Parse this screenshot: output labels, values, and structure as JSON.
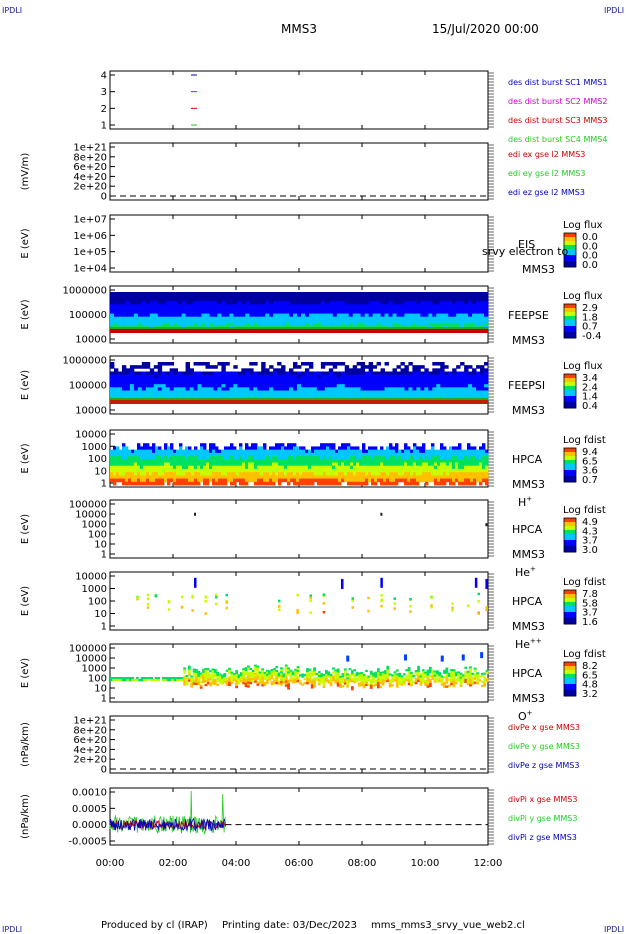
{
  "header": {
    "corner_tl": "IPDLI",
    "corner_tr": "IPDLI",
    "corner_bl": "IPDLI",
    "corner_br": "IPDLI",
    "title": "MMS3",
    "date": "15/Jul/2020 00:00"
  },
  "footer": {
    "produced": "Produced by cl (IRAP)",
    "printing": "Printing date: 03/Dec/2023",
    "script": "mms_mms3_srvy_vue_web2.cl"
  },
  "colors": {
    "red": "#cc0000",
    "green": "#22cc22",
    "blue": "#0000bb",
    "magenta": "#cc00cc"
  },
  "chart_data": {
    "type": "spectrogram-stack",
    "x_ticks": [
      "00:00",
      "02:00",
      "04:00",
      "06:00",
      "08:00",
      "10:00",
      "12:00"
    ],
    "panels": [
      {
        "id": "burst",
        "type": "line",
        "yticks": [
          "4",
          "3",
          "2",
          "1"
        ],
        "ylabel": "",
        "legend": [
          {
            "text": "des dist burst SC1 MMS1",
            "color": "#0000bb"
          },
          {
            "text": "des dist burst SC2 MMS2",
            "color": "#cc00cc"
          },
          {
            "text": "des dist burst SC3 MMS3",
            "color": "#cc0000"
          },
          {
            "text": "des dist burst SC4 MMS4",
            "color": "#22cc22"
          }
        ],
        "marks": [
          {
            "sc": 4,
            "time": "02:40"
          },
          {
            "sc": 3,
            "time": "02:40"
          },
          {
            "sc": 2,
            "time": "02:40"
          },
          {
            "sc": 1,
            "time": "02:40"
          }
        ]
      },
      {
        "id": "edi",
        "type": "line",
        "ylabel": "(mV/m)",
        "yticks": [
          "1e+21",
          "8e+20",
          "6e+20",
          "4e+20",
          "2e+20",
          "0"
        ],
        "legend": [
          {
            "text": "edi ex gse l2 MMS3",
            "color": "#cc0000"
          },
          {
            "text": "edi ey gse l2 MMS3",
            "color": "#22cc22"
          },
          {
            "text": "edi ez gse l2 MMS3",
            "color": "#0000bb"
          }
        ]
      },
      {
        "id": "eis",
        "type": "heatmap",
        "ylabel": "E (eV)",
        "yticks": [
          "1e+07",
          "1e+06",
          "1e+05",
          "1e+04"
        ],
        "inst": [
          "EIS",
          "MMS3"
        ],
        "overlap_label": "srvy electron to",
        "cbar_title": "Log flux",
        "cbar_ticks": [
          "0.0",
          "0.0",
          "0.0",
          "0.0"
        ]
      },
      {
        "id": "feepse",
        "type": "heatmap",
        "ylabel": "E (eV)",
        "yticks": [
          "1000000",
          "100000",
          "10000"
        ],
        "inst": [
          "FEEPSE",
          "MMS3"
        ],
        "cbar_title": "Log flux",
        "cbar_ticks": [
          "2.9",
          "1.8",
          "0.7",
          "-0.4"
        ]
      },
      {
        "id": "feepsi",
        "type": "heatmap",
        "ylabel": "E (eV)",
        "yticks": [
          "1000000",
          "100000",
          "10000"
        ],
        "inst": [
          "FEEPSI",
          "MMS3"
        ],
        "cbar_title": "Log flux",
        "cbar_ticks": [
          "3.4",
          "2.4",
          "1.4",
          "0.4"
        ]
      },
      {
        "id": "hpca_h",
        "type": "heatmap",
        "ylabel": "E (eV)",
        "yticks": [
          "10000",
          "1000",
          "100",
          "10",
          "1"
        ],
        "inst": [
          "HPCA",
          "MMS3"
        ],
        "species": "H",
        "species_sup": "+",
        "cbar_title": "Log fdist",
        "cbar_ticks": [
          "9.4",
          "6.5",
          "3.6",
          "0.7"
        ]
      },
      {
        "id": "hpca_he",
        "type": "heatmap",
        "ylabel": "E (eV)",
        "yticks": [
          "100000",
          "10000",
          "1000",
          "100",
          "10",
          "1"
        ],
        "inst": [
          "HPCA",
          "MMS3"
        ],
        "species": "He",
        "species_sup": "+",
        "cbar_title": "Log fdist",
        "cbar_ticks": [
          "4.9",
          "4.3",
          "3.7",
          "3.0"
        ]
      },
      {
        "id": "hpca_he2",
        "type": "heatmap",
        "ylabel": "E (eV)",
        "yticks": [
          "10000",
          "1000",
          "100",
          "10",
          "1"
        ],
        "inst": [
          "HPCA",
          "MMS3"
        ],
        "species": "He",
        "species_sup": "++",
        "cbar_title": "Log fdist",
        "cbar_ticks": [
          "7.8",
          "5.8",
          "3.7",
          "1.6"
        ]
      },
      {
        "id": "hpca_o",
        "type": "heatmap",
        "ylabel": "E (eV)",
        "yticks": [
          "100000",
          "10000",
          "1000",
          "100",
          "10",
          "1"
        ],
        "inst": [
          "HPCA",
          "MMS3"
        ],
        "species": "O",
        "species_sup": "+",
        "cbar_title": "Log fdist",
        "cbar_ticks": [
          "8.2",
          "6.5",
          "4.8",
          "3.2"
        ]
      },
      {
        "id": "divpe",
        "type": "line",
        "ylabel": "(nPa/km)",
        "yticks": [
          "1e+21",
          "8e+20",
          "6e+20",
          "4e+20",
          "2e+20",
          "0"
        ],
        "legend": [
          {
            "text": "divPe x gse MMS3",
            "color": "#cc0000"
          },
          {
            "text": "divPe y gse MMS3",
            "color": "#22cc22"
          },
          {
            "text": "divPe z gse MMS3",
            "color": "#0000bb"
          }
        ]
      },
      {
        "id": "divpi",
        "type": "line",
        "ylabel": "(nPa/km)",
        "yticks": [
          "0.0010",
          "0.0005",
          "0.0000",
          "-0.0005"
        ],
        "data_extent": [
          "00:00",
          "03:40"
        ],
        "legend": [
          {
            "text": "divPi x gse MMS3",
            "color": "#cc0000"
          },
          {
            "text": "divPi y gse MMS3",
            "color": "#22cc22"
          },
          {
            "text": "divPi z gse MMS3",
            "color": "#0000bb"
          }
        ]
      }
    ]
  }
}
